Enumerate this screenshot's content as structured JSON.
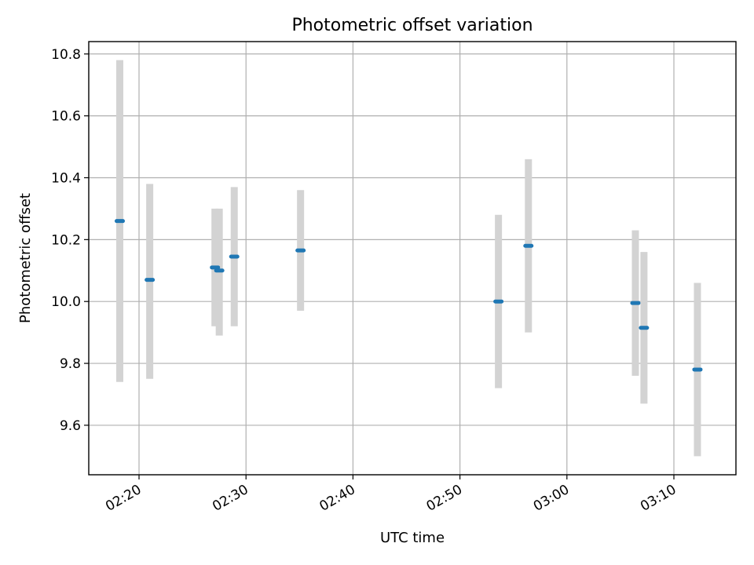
{
  "chart_data": {
    "type": "scatter",
    "title": "Photometric offset variation",
    "xlabel": "UTC time",
    "ylabel": "Photometric offset",
    "x_tick_labels": [
      "02:20",
      "02:30",
      "02:40",
      "02:50",
      "03:00",
      "03:10"
    ],
    "x_ticks_minutes": [
      140,
      150,
      160,
      170,
      180,
      190
    ],
    "xlim_minutes": [
      135.3,
      195.8
    ],
    "y_tick_labels": [
      "9.6",
      "9.8",
      "10.0",
      "10.2",
      "10.4",
      "10.6",
      "10.8"
    ],
    "y_ticks": [
      9.6,
      9.8,
      10.0,
      10.2,
      10.4,
      10.6,
      10.8
    ],
    "ylim": [
      9.44,
      10.84
    ],
    "grid": true,
    "colors": {
      "marker": "#1f77b4",
      "errorbar": "#d3d3d3"
    },
    "points": [
      {
        "time": "02:18:12",
        "t": 138.2,
        "y": 10.26,
        "ylow": 9.74,
        "yhigh": 10.78
      },
      {
        "time": "02:21:00",
        "t": 141.0,
        "y": 10.07,
        "ylow": 9.75,
        "yhigh": 10.38
      },
      {
        "time": "02:27:06",
        "t": 147.1,
        "y": 10.11,
        "ylow": 9.92,
        "yhigh": 10.3
      },
      {
        "time": "02:27:30",
        "t": 147.5,
        "y": 10.1,
        "ylow": 9.89,
        "yhigh": 10.3
      },
      {
        "time": "02:28:54",
        "t": 148.9,
        "y": 10.145,
        "ylow": 9.92,
        "yhigh": 10.37
      },
      {
        "time": "02:35:06",
        "t": 155.1,
        "y": 10.165,
        "ylow": 9.97,
        "yhigh": 10.36
      },
      {
        "time": "02:53:36",
        "t": 173.6,
        "y": 10.0,
        "ylow": 9.72,
        "yhigh": 10.28
      },
      {
        "time": "02:56:24",
        "t": 176.4,
        "y": 10.18,
        "ylow": 9.9,
        "yhigh": 10.46
      },
      {
        "time": "03:06:24",
        "t": 186.4,
        "y": 9.995,
        "ylow": 9.76,
        "yhigh": 10.23
      },
      {
        "time": "03:07:12",
        "t": 187.2,
        "y": 9.915,
        "ylow": 9.67,
        "yhigh": 10.16
      },
      {
        "time": "03:12:12",
        "t": 192.2,
        "y": 9.78,
        "ylow": 9.5,
        "yhigh": 10.06
      }
    ]
  }
}
